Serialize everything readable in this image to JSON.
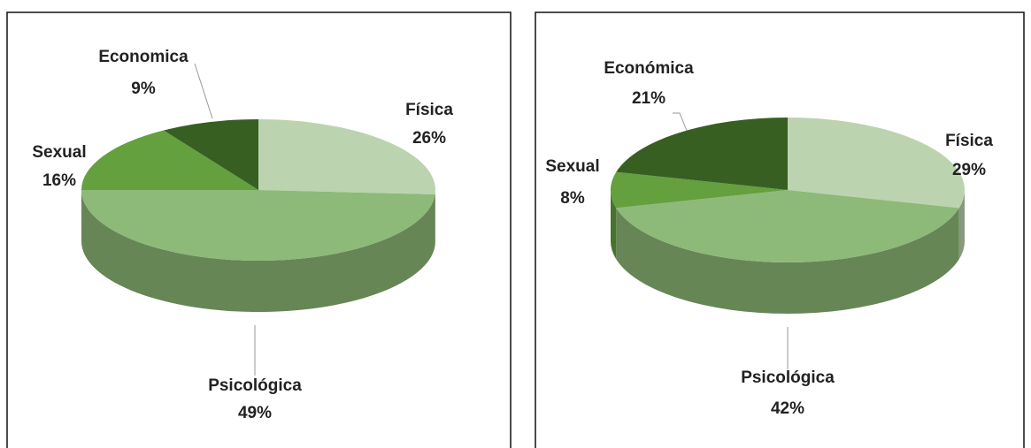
{
  "chart_data": [
    {
      "type": "pie",
      "categories": [
        "Física",
        "Psicológica",
        "Sexual",
        "Economica"
      ],
      "values": [
        26,
        49,
        16,
        9
      ],
      "value_labels": [
        "26%",
        "49%",
        "16%",
        "9%"
      ],
      "colors": [
        "#bcd3b0",
        "#8dba78",
        "#64a03e",
        "#375f22"
      ]
    },
    {
      "type": "pie",
      "categories": [
        "Física",
        "Psicológica",
        "Sexual",
        "Económica"
      ],
      "values": [
        29,
        42,
        8,
        21
      ],
      "value_labels": [
        "29%",
        "42%",
        "8%",
        "21%"
      ],
      "colors": [
        "#bcd3b0",
        "#8dba78",
        "#64a03e",
        "#375f22"
      ]
    }
  ]
}
